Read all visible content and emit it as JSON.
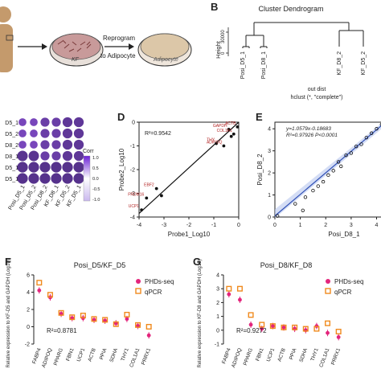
{
  "panel_letters": {
    "b": "B",
    "d": "D",
    "e": "E",
    "f": "F",
    "g": "G"
  },
  "panelA": {
    "dish1_label": "KF",
    "arrow_top": "Reprogram",
    "arrow_bottom": "to Adipocyte",
    "dish2_label": "Adipocyte"
  },
  "panelB": {
    "title": "Cluster Dendrogram",
    "ylabel": "Height",
    "yticks": [
      "0",
      "30000"
    ],
    "leaves": [
      "Posi_D5_1",
      "Posi_D8_1",
      "KF_D8_2",
      "KF_D5_2"
    ],
    "footer_line1": "out dist",
    "footer_line2": "hclust (*, \"complete\")"
  },
  "panelC": {
    "row_labels": [
      "D5_1",
      "D5_2",
      "D8_2",
      "D8_1",
      "D5_1",
      "D5_1"
    ],
    "col_labels": [
      "Posi_D5_1",
      "Posi_D5_2",
      "Posi_D8_2",
      "KF_D8_1",
      "KF_D5_2",
      "KF_D5_1"
    ],
    "legend_title": "Corr",
    "legend_ticks": [
      "1.0",
      "0.5",
      "0.0",
      "-0.5",
      "-1.0"
    ],
    "matrix": [
      [
        0.55,
        0.55,
        0.72,
        0.72,
        0.85,
        0.85
      ],
      [
        0.55,
        0.55,
        0.72,
        0.72,
        0.85,
        0.85
      ],
      [
        0.55,
        0.55,
        0.72,
        0.72,
        0.85,
        0.85
      ],
      [
        0.92,
        0.92,
        0.72,
        0.72,
        0.85,
        0.85
      ],
      [
        0.96,
        0.96,
        0.96,
        0.96,
        0.96,
        0.96
      ],
      [
        0.96,
        0.96,
        0.96,
        0.96,
        0.96,
        0.96
      ]
    ],
    "colors": {
      "high": "#7b2fe3",
      "low": "#e6dcf8"
    }
  },
  "chart_data": [
    {
      "type": "scatter",
      "panel": "D",
      "xlabel": "Probe1_Log10",
      "ylabel": "Probe2_Log10",
      "xlim": [
        -4,
        0
      ],
      "ylim": [
        -4,
        0
      ],
      "xticks": [
        "-4",
        "-3",
        "-2",
        "-1",
        "0"
      ],
      "yticks": [
        "-4",
        "-3",
        "-2",
        "-1",
        "0"
      ],
      "annotation": "R²=0.9542",
      "points": [
        {
          "x": -3.9,
          "y": -3.7,
          "label": "UCP1"
        },
        {
          "x": -3.7,
          "y": -3.2,
          "label": "FRDM16"
        },
        {
          "x": -3.3,
          "y": -2.8,
          "label": "EBF2"
        },
        {
          "x": -3.1,
          "y": -3.1,
          "label": ""
        },
        {
          "x": -0.9,
          "y": -0.9,
          "label": "THY"
        },
        {
          "x": -0.6,
          "y": -1.0,
          "label": "ADIPOQ"
        },
        {
          "x": -0.4,
          "y": -0.3,
          "label": "GAPDH"
        },
        {
          "x": -0.2,
          "y": -0.5,
          "label": "COL1A1"
        },
        {
          "x": -0.05,
          "y": -0.2,
          "label": "ACTB"
        },
        {
          "x": -0.3,
          "y": -0.6,
          "label": ""
        }
      ]
    },
    {
      "type": "scatter",
      "panel": "E",
      "xlabel": "Posi_D8_1",
      "ylabel": "Posi_D8_2",
      "xlim": [
        0,
        4.3
      ],
      "ylim": [
        0,
        4.3
      ],
      "xticks": [
        "0",
        "1",
        "2",
        "3",
        "4"
      ],
      "yticks": [
        "0",
        "1",
        "2",
        "3",
        "4"
      ],
      "annotation_line1": "y=1.0579x-0.18683",
      "annotation_line2": "R²=0.97926 P<0.0001",
      "points": [
        [
          0.1,
          0.05
        ],
        [
          0.8,
          0.6
        ],
        [
          1.1,
          0.3
        ],
        [
          1.2,
          0.9
        ],
        [
          1.5,
          1.2
        ],
        [
          1.7,
          1.4
        ],
        [
          1.9,
          1.6
        ],
        [
          2.1,
          1.9
        ],
        [
          2.3,
          2.1
        ],
        [
          2.5,
          2.5
        ],
        [
          2.6,
          2.3
        ],
        [
          2.8,
          2.8
        ],
        [
          3.0,
          2.9
        ],
        [
          3.2,
          3.2
        ],
        [
          3.4,
          3.3
        ],
        [
          3.6,
          3.6
        ],
        [
          3.8,
          3.8
        ],
        [
          4.0,
          4.0
        ],
        [
          4.2,
          4.2
        ]
      ]
    },
    {
      "type": "scatter",
      "panel": "F",
      "title": "Posi_D5/KF_D5",
      "ylabel": "Relative expression to KF-D5 and GAPDH (Log10)",
      "ylim": [
        -2,
        6
      ],
      "yticks": [
        "6",
        "4",
        "2",
        "0",
        "-2"
      ],
      "annotation": "R²=0.8781",
      "legend": [
        "PHDs-seq",
        "qPCR"
      ],
      "categories": [
        "FABP4",
        "ADIPOQ",
        "PPARG",
        "FBN1",
        "UCP1",
        "ACTB",
        "PPIA",
        "SDHA",
        "THY1",
        "COL1A1",
        "PRRX1"
      ],
      "series": [
        {
          "name": "PHDs-seq",
          "values": [
            4.2,
            3.4,
            1.5,
            1.0,
            1.0,
            0.8,
            0.7,
            0.4,
            0.9,
            0.1,
            -1.0
          ]
        },
        {
          "name": "qPCR",
          "values": [
            5.1,
            3.7,
            1.6,
            1.1,
            1.3,
            0.9,
            0.8,
            0.3,
            1.4,
            0.2,
            0.0
          ]
        }
      ]
    },
    {
      "type": "scatter",
      "panel": "G",
      "title": "Posi_D8/KF_D8",
      "ylabel": "Relative expression to KF-D8 and GAPDH (Log10)",
      "ylim": [
        -1,
        4
      ],
      "yticks": [
        "4",
        "3",
        "2",
        "1",
        "0",
        "-1"
      ],
      "annotation": "R²=0.9272",
      "legend": [
        "PHDs-seq",
        "qPCR"
      ],
      "categories": [
        "FABP4",
        "ADIPOQ",
        "PPARG",
        "FBN1",
        "UCP1",
        "ACTB",
        "PPIA",
        "SDHA",
        "THY1",
        "COL1A1",
        "PRRX1"
      ],
      "series": [
        {
          "name": "PHDs-seq",
          "values": [
            2.6,
            2.2,
            0.4,
            0.1,
            0.3,
            0.2,
            0.1,
            0.0,
            0.3,
            -0.2,
            -0.5
          ]
        },
        {
          "name": "qPCR",
          "values": [
            3.0,
            3.0,
            1.1,
            0.4,
            0.3,
            0.2,
            0.2,
            0.1,
            0.1,
            0.5,
            -0.1
          ]
        }
      ]
    }
  ],
  "colors": {
    "pink": "#e3257c",
    "orange": "#f08a1e",
    "purple": "#7b2fe3",
    "darkred": "#b22222",
    "blue": "#2f4fb5"
  }
}
